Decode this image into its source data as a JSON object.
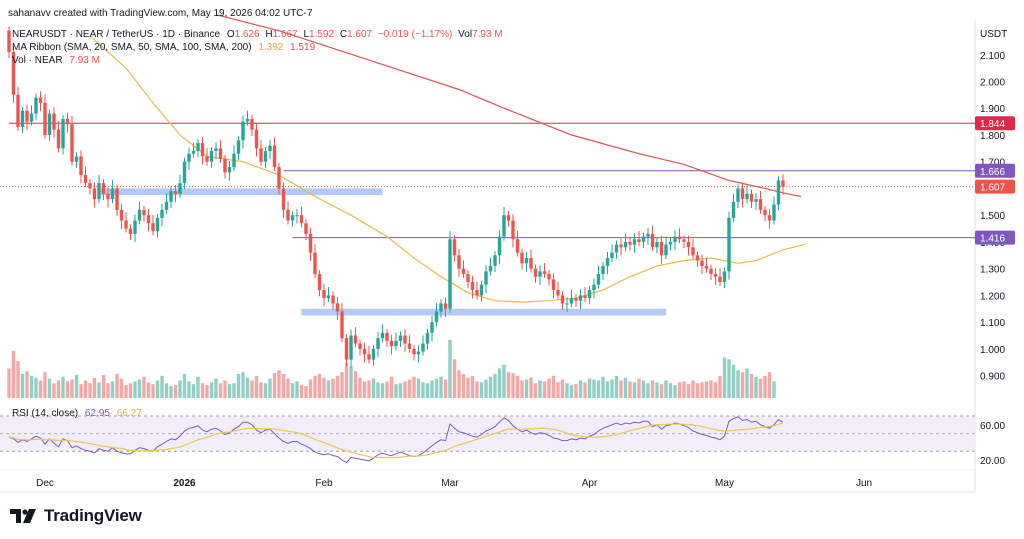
{
  "header": {
    "created_by": "sahanavv created with TradingView.com, May 19, 2026 04:02 UTC-7",
    "symbol_line": "NEARUSDT · NEAR / TetherUS · 1D · Binance",
    "ohlc": {
      "o_label": "O",
      "o": "1.626",
      "h_label": "H",
      "h": "1.667",
      "l_label": "L",
      "l": "1.592",
      "c_label": "C",
      "c": "1.607",
      "chg": "−0.019 (−1.17%)",
      "vol_label": "Vol",
      "vol": "7.93 M"
    },
    "ma_ribbon": {
      "label": "MA Ribbon (SMA, 20, SMA, 50, SMA, 100, SMA, 200)",
      "v1": "1.392",
      "v2": "1.519"
    },
    "volume": {
      "label": "Vol · NEAR",
      "value": "7.93 M"
    }
  },
  "rsi_header": {
    "label": "RSI (14, close)",
    "value": "62.95",
    "ma": "66.27"
  },
  "currency": "USDT",
  "brand": "TradingView",
  "colors": {
    "up": "#26a69a",
    "down": "#ef5350",
    "up_vol": "#8fcfc6",
    "down_vol": "#f5a7a5",
    "sma_slow": "#d9534f",
    "sma_fast": "#e8b94a",
    "hline_red": "#e0284a",
    "hline_purple": "#7e57c2",
    "zone": "#9bb7f5",
    "rsi_line": "#7e57c2",
    "rsi_ma": "#e8c65a",
    "rsi_band": "#ede7f6"
  },
  "chart_data": {
    "type": "candlestick",
    "price_axis": {
      "min": 0.82,
      "max": 2.23,
      "ticks": [
        "2.100",
        "2.000",
        "1.900",
        "1.800",
        "1.700",
        "1.500",
        "1.400",
        "1.300",
        "1.200",
        "1.100",
        "1.000",
        "0.900"
      ]
    },
    "x_labels": [
      {
        "label": "Dec",
        "day": 8
      },
      {
        "label": "2026",
        "day": 39
      },
      {
        "label": "Feb",
        "day": 70
      },
      {
        "label": "Mar",
        "day": 98
      },
      {
        "label": "Apr",
        "day": 129
      },
      {
        "label": "May",
        "day": 159
      },
      {
        "label": "Jun",
        "day": 190
      }
    ],
    "price_labels": [
      {
        "value": "1.844",
        "price": 1.844,
        "kind": "red"
      },
      {
        "value": "1.666",
        "price": 1.666,
        "kind": "purple"
      },
      {
        "value": "1.607",
        "price": 1.607,
        "kind": "current"
      },
      {
        "value": "1.416",
        "price": 1.416,
        "kind": "purple"
      }
    ],
    "horizontal_lines": [
      {
        "price": 1.844,
        "kind": "red",
        "from_day": 0
      },
      {
        "price": 1.666,
        "kind": "purple",
        "from_day": 61
      },
      {
        "price": 1.416,
        "kind": "purple",
        "from_day": 63
      }
    ],
    "zones": [
      {
        "from_day": 20,
        "to_day": 83,
        "top": 1.6,
        "bottom": 1.575
      },
      {
        "from_day": 65,
        "to_day": 146,
        "top": 1.15,
        "bottom": 1.125
      }
    ],
    "closes": [
      2.11,
      1.95,
      1.83,
      1.89,
      1.85,
      1.88,
      1.94,
      1.92,
      1.8,
      1.88,
      1.82,
      1.75,
      1.86,
      1.84,
      1.7,
      1.72,
      1.65,
      1.62,
      1.6,
      1.56,
      1.62,
      1.58,
      1.56,
      1.6,
      1.52,
      1.48,
      1.45,
      1.43,
      1.48,
      1.52,
      1.5,
      1.47,
      1.44,
      1.49,
      1.52,
      1.55,
      1.59,
      1.58,
      1.62,
      1.7,
      1.73,
      1.74,
      1.77,
      1.72,
      1.7,
      1.74,
      1.75,
      1.71,
      1.66,
      1.68,
      1.73,
      1.78,
      1.85,
      1.86,
      1.82,
      1.75,
      1.7,
      1.74,
      1.76,
      1.68,
      1.6,
      1.52,
      1.48,
      1.5,
      1.5,
      1.47,
      1.43,
      1.36,
      1.28,
      1.22,
      1.19,
      1.2,
      1.17,
      1.14,
      1.04,
      0.96,
      1.05,
      1.02,
      1.0,
      0.98,
      0.96,
      1.0,
      1.04,
      1.06,
      1.03,
      1.01,
      1.03,
      1.05,
      1.02,
      1.0,
      0.98,
      0.99,
      1.02,
      1.06,
      1.1,
      1.14,
      1.17,
      1.15,
      1.41,
      1.35,
      1.3,
      1.28,
      1.25,
      1.22,
      1.2,
      1.24,
      1.29,
      1.31,
      1.35,
      1.42,
      1.5,
      1.48,
      1.41,
      1.36,
      1.32,
      1.34,
      1.3,
      1.27,
      1.29,
      1.28,
      1.26,
      1.22,
      1.2,
      1.17,
      1.17,
      1.19,
      1.18,
      1.2,
      1.19,
      1.22,
      1.24,
      1.28,
      1.31,
      1.34,
      1.36,
      1.39,
      1.38,
      1.4,
      1.39,
      1.41,
      1.4,
      1.42,
      1.43,
      1.38,
      1.4,
      1.35,
      1.39,
      1.4,
      1.42,
      1.41,
      1.4,
      1.38,
      1.35,
      1.33,
      1.31,
      1.3,
      1.28,
      1.27,
      1.25,
      1.29,
      1.49,
      1.55,
      1.6,
      1.56,
      1.58,
      1.55,
      1.56,
      1.52,
      1.5,
      1.48,
      1.54,
      1.63,
      1.607
    ],
    "volumes": [
      3.2,
      5.1,
      4.0,
      2.6,
      2.9,
      2.4,
      2.2,
      1.9,
      2.8,
      2.1,
      1.6,
      1.9,
      2.3,
      1.8,
      2.0,
      2.5,
      1.5,
      1.9,
      1.6,
      2.2,
      1.7,
      2.5,
      1.6,
      1.8,
      2.6,
      2.1,
      1.4,
      1.6,
      1.8,
      2.0,
      2.3,
      1.7,
      1.5,
      1.9,
      2.4,
      1.6,
      1.3,
      1.4,
      1.9,
      2.6,
      1.8,
      1.5,
      2.3,
      1.6,
      1.4,
      1.7,
      2.1,
      1.6,
      1.9,
      1.5,
      1.6,
      2.6,
      2.8,
      2.2,
      1.9,
      2.4,
      1.7,
      1.6,
      2.1,
      2.7,
      3.0,
      2.6,
      2.1,
      1.6,
      1.8,
      1.4,
      1.3,
      2.0,
      2.4,
      2.6,
      2.2,
      1.9,
      2.1,
      2.4,
      2.8,
      3.8,
      3.4,
      2.9,
      2.2,
      1.8,
      1.9,
      2.1,
      1.7,
      1.6,
      1.8,
      2.3,
      1.5,
      1.6,
      1.8,
      2.0,
      2.3,
      2.1,
      1.7,
      1.6,
      1.9,
      2.1,
      2.3,
      2.0,
      6.3,
      4.2,
      3.0,
      2.6,
      2.2,
      2.4,
      1.8,
      1.7,
      2.0,
      2.3,
      2.6,
      3.2,
      3.6,
      2.8,
      2.7,
      2.4,
      1.9,
      2.0,
      2.2,
      1.6,
      1.9,
      1.8,
      2.1,
      2.4,
      1.7,
      2.0,
      1.6,
      1.4,
      1.5,
      1.9,
      1.7,
      2.1,
      2.0,
      1.9,
      2.3,
      1.8,
      2.0,
      2.4,
      1.9,
      2.2,
      1.8,
      1.7,
      2.1,
      1.9,
      1.6,
      1.9,
      1.7,
      1.5,
      1.9,
      1.6,
      1.4,
      1.7,
      1.8,
      1.5,
      1.9,
      1.6,
      1.7,
      1.8,
      1.9,
      1.7,
      2.4,
      4.4,
      4.2,
      3.6,
      3.0,
      2.8,
      3.2,
      2.6,
      2.3,
      2.1,
      2.4,
      2.8,
      1.8
    ],
    "rsi": [
      46,
      44,
      40,
      43,
      41,
      44,
      47,
      45,
      38,
      44,
      39,
      35,
      44,
      42,
      34,
      36,
      33,
      31,
      30,
      28,
      33,
      31,
      30,
      34,
      30,
      28,
      27,
      27,
      31,
      34,
      33,
      31,
      30,
      35,
      38,
      41,
      44,
      43,
      47,
      53,
      56,
      57,
      59,
      54,
      52,
      55,
      56,
      53,
      49,
      51,
      55,
      58,
      63,
      63,
      60,
      54,
      51,
      54,
      55,
      50,
      45,
      41,
      39,
      41,
      41,
      38,
      36,
      33,
      29,
      27,
      26,
      27,
      25,
      24,
      20,
      17,
      23,
      22,
      21,
      20,
      19,
      22,
      26,
      28,
      26,
      25,
      27,
      29,
      27,
      25,
      24,
      25,
      28,
      32,
      36,
      40,
      43,
      42,
      61,
      56,
      52,
      51,
      49,
      47,
      46,
      49,
      53,
      55,
      58,
      63,
      68,
      65,
      59,
      55,
      52,
      54,
      51,
      49,
      51,
      50,
      48,
      45,
      44,
      42,
      42,
      44,
      43,
      45,
      44,
      47,
      49,
      53,
      56,
      58,
      60,
      62,
      60,
      62,
      61,
      63,
      62,
      64,
      64,
      58,
      60,
      55,
      59,
      60,
      62,
      61,
      59,
      57,
      53,
      51,
      49,
      48,
      46,
      45,
      43,
      47,
      64,
      67,
      69,
      65,
      66,
      63,
      64,
      60,
      58,
      56,
      60,
      66,
      62.95
    ],
    "sma_slow_pts": [
      [
        46,
        2.25
      ],
      [
        60,
        2.19
      ],
      [
        80,
        2.08
      ],
      [
        100,
        1.97
      ],
      [
        110,
        1.9
      ],
      [
        125,
        1.8
      ],
      [
        140,
        1.73
      ],
      [
        150,
        1.69
      ],
      [
        160,
        1.63
      ],
      [
        168,
        1.6
      ],
      [
        173,
        1.58
      ],
      [
        176,
        1.57
      ]
    ],
    "sma_fast_pts": [
      [
        18,
        2.17
      ],
      [
        26,
        2.05
      ],
      [
        32,
        1.92
      ],
      [
        38,
        1.8
      ],
      [
        44,
        1.72
      ],
      [
        52,
        1.7
      ],
      [
        60,
        1.65
      ],
      [
        68,
        1.57
      ],
      [
        76,
        1.5
      ],
      [
        84,
        1.42
      ],
      [
        90,
        1.34
      ],
      [
        96,
        1.27
      ],
      [
        102,
        1.21
      ],
      [
        108,
        1.18
      ],
      [
        114,
        1.175
      ],
      [
        120,
        1.18
      ],
      [
        126,
        1.19
      ],
      [
        132,
        1.22
      ],
      [
        138,
        1.27
      ],
      [
        144,
        1.31
      ],
      [
        150,
        1.33
      ],
      [
        156,
        1.34
      ],
      [
        162,
        1.32
      ],
      [
        166,
        1.33
      ],
      [
        172,
        1.37
      ],
      [
        177,
        1.392
      ]
    ]
  }
}
